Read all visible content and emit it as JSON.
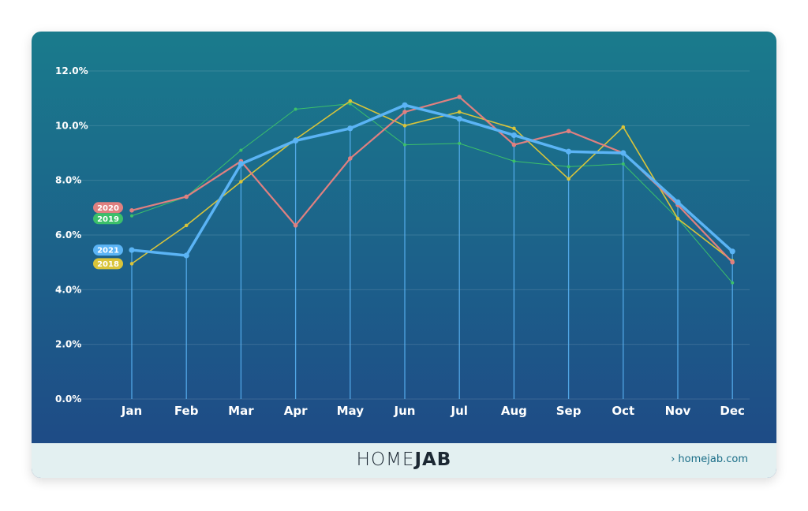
{
  "chart_data": {
    "type": "line",
    "categories": [
      "Jan",
      "Feb",
      "Mar",
      "Apr",
      "May",
      "Jun",
      "Jul",
      "Aug",
      "Sep",
      "Oct",
      "Nov",
      "Dec"
    ],
    "yticks": [
      "0.0%",
      "2.0%",
      "4.0%",
      "6.0%",
      "8.0%",
      "10.0%",
      "12.0%"
    ],
    "ylim": [
      0,
      12
    ],
    "grid": true,
    "series": [
      {
        "name": "2019",
        "color": "#3cc06a",
        "values": [
          6.7,
          7.4,
          9.1,
          10.6,
          10.8,
          9.3,
          9.35,
          8.7,
          8.5,
          8.6,
          6.6,
          4.25
        ]
      },
      {
        "name": "2018",
        "color": "#d9c43a",
        "values": [
          4.95,
          6.35,
          7.95,
          9.5,
          10.9,
          10.0,
          10.5,
          9.9,
          8.05,
          9.95,
          6.6,
          5.05
        ]
      },
      {
        "name": "2020",
        "color": "#e08080",
        "values": [
          6.9,
          7.4,
          8.7,
          6.35,
          8.8,
          10.5,
          11.05,
          9.3,
          9.8,
          9.0,
          7.1,
          5.0
        ]
      },
      {
        "name": "2021",
        "color": "#5bb4f5",
        "values": [
          5.45,
          5.25,
          8.6,
          9.45,
          9.9,
          10.75,
          10.25,
          9.65,
          9.05,
          9.0,
          7.2,
          5.4
        ]
      }
    ]
  },
  "footer": {
    "brand_part1": "HOME",
    "brand_part2": "JAB",
    "link_text": "homejab.com",
    "link_icon": "chevron-right-icon"
  }
}
